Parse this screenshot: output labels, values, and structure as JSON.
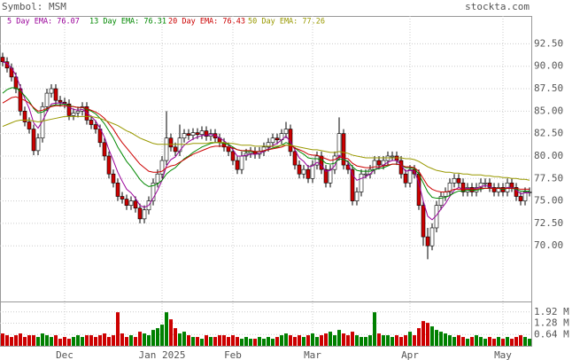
{
  "chart_data": {
    "type": "candlestick",
    "title": "Symbol: MSM",
    "source": "stockta.com",
    "categories": [
      null,
      null,
      null,
      null,
      null,
      null,
      null,
      null,
      null,
      null,
      null,
      null,
      null,
      null,
      "Dec",
      null,
      null,
      null,
      null,
      null,
      null,
      null,
      null,
      null,
      null,
      null,
      null,
      null,
      null,
      null,
      null,
      null,
      null,
      null,
      null,
      null,
      "Jan 2025",
      null,
      null,
      null,
      null,
      null,
      null,
      null,
      null,
      null,
      null,
      null,
      null,
      null,
      null,
      null,
      "Feb",
      null,
      null,
      null,
      null,
      null,
      null,
      null,
      null,
      null,
      null,
      null,
      null,
      null,
      null,
      null,
      null,
      null,
      "Mar",
      null,
      null,
      null,
      null,
      null,
      null,
      null,
      null,
      null,
      null,
      null,
      null,
      null,
      null,
      null,
      null,
      null,
      null,
      null,
      null,
      null,
      "Apr",
      null,
      null,
      null,
      null,
      null,
      null,
      null,
      null,
      null,
      null,
      null,
      null,
      null,
      null,
      null,
      null,
      null,
      null,
      null,
      null,
      "May",
      null,
      null,
      null,
      null,
      null,
      null
    ],
    "open": [
      91.0,
      90.5,
      89.8,
      88.8,
      87.5,
      85.0,
      83.8,
      83.0,
      80.6,
      82.0,
      85.5,
      87.0,
      87.5,
      86.2,
      86.0,
      85.8,
      84.5,
      84.8,
      85.0,
      85.5,
      84.0,
      83.5,
      83.0,
      81.5,
      80.0,
      78.0,
      77.0,
      75.5,
      75.2,
      74.5,
      75.0,
      74.2,
      73.0,
      74.0,
      75.0,
      77.0,
      78.0,
      79.5,
      82.0,
      81.0,
      80.5,
      82.0,
      82.5,
      82.3,
      82.6,
      82.4,
      82.8,
      82.2,
      82.5,
      82.0,
      81.5,
      81.0,
      80.5,
      79.5,
      78.5,
      80.0,
      80.3,
      80.5,
      80.2,
      80.5,
      81.0,
      81.5,
      82.0,
      81.8,
      82.5,
      83.0,
      80.5,
      79.0,
      78.0,
      78.5,
      77.5,
      79.0,
      80.0,
      78.5,
      77.0,
      78.5,
      80.0,
      82.5,
      79.0,
      78.5,
      75.0,
      76.0,
      78.0,
      78.0,
      78.5,
      79.5,
      79.0,
      79.5,
      80.0,
      80.0,
      79.5,
      78.0,
      77.0,
      78.5,
      78.0,
      74.5,
      71.0,
      70.0,
      72.0,
      74.5,
      75.5,
      76.0,
      77.0,
      77.5,
      77.0,
      76.0,
      76.5,
      76.0,
      76.5,
      77.0,
      77.0,
      76.5,
      76.0,
      76.5,
      76.0,
      77.0,
      76.5,
      75.5,
      75.0,
      76.0
    ],
    "high": [
      91.5,
      91.0,
      90.3,
      89.3,
      88.0,
      85.5,
      84.3,
      83.5,
      82.5,
      86.0,
      87.5,
      88.0,
      88.0,
      86.7,
      86.5,
      86.3,
      85.3,
      85.5,
      86.0,
      86.0,
      84.5,
      84.0,
      83.5,
      82.0,
      80.5,
      78.5,
      77.5,
      76.0,
      75.7,
      75.5,
      75.5,
      74.7,
      74.5,
      75.5,
      77.5,
      78.5,
      80.0,
      85.0,
      82.5,
      81.5,
      83.5,
      83.0,
      83.0,
      83.1,
      83.1,
      83.3,
      83.3,
      83.0,
      83.0,
      82.5,
      82.0,
      81.5,
      81.0,
      80.0,
      80.5,
      80.8,
      81.0,
      81.0,
      81.0,
      81.5,
      82.0,
      82.5,
      82.5,
      83.0,
      83.8,
      83.5,
      81.0,
      79.5,
      79.0,
      79.0,
      79.5,
      80.5,
      80.5,
      79.0,
      79.0,
      80.5,
      84.3,
      83.0,
      79.5,
      79.0,
      76.5,
      78.5,
      78.5,
      79.0,
      80.0,
      80.0,
      80.0,
      80.5,
      80.5,
      80.5,
      80.0,
      78.5,
      79.0,
      79.0,
      78.5,
      75.0,
      72.0,
      72.5,
      75.0,
      76.0,
      76.5,
      77.5,
      78.0,
      78.0,
      77.5,
      77.0,
      77.0,
      77.0,
      77.5,
      77.5,
      77.5,
      77.0,
      77.0,
      77.0,
      77.5,
      77.5,
      77.0,
      76.0,
      76.5,
      76.5
    ],
    "low": [
      90.0,
      89.3,
      88.3,
      87.0,
      84.5,
      83.3,
      82.5,
      80.1,
      80.1,
      81.5,
      85.0,
      86.5,
      85.7,
      85.5,
      85.3,
      84.0,
      84.0,
      84.3,
      84.5,
      83.5,
      83.0,
      82.5,
      81.0,
      79.5,
      77.5,
      76.5,
      75.0,
      74.7,
      74.0,
      74.0,
      73.7,
      72.5,
      72.5,
      73.5,
      74.5,
      76.5,
      77.5,
      79.0,
      80.5,
      80.0,
      80.0,
      81.5,
      81.8,
      81.8,
      81.9,
      81.9,
      81.7,
      81.7,
      81.5,
      81.0,
      80.5,
      80.0,
      79.0,
      78.0,
      78.0,
      79.5,
      79.8,
      79.7,
      79.7,
      80.0,
      80.5,
      81.0,
      81.3,
      81.3,
      82.0,
      80.0,
      78.5,
      77.5,
      77.5,
      77.0,
      77.0,
      78.5,
      78.0,
      76.5,
      76.5,
      78.0,
      79.5,
      78.5,
      78.0,
      74.5,
      74.5,
      75.5,
      77.5,
      77.5,
      78.0,
      78.5,
      78.5,
      79.0,
      79.5,
      79.0,
      77.5,
      76.5,
      76.5,
      77.5,
      74.0,
      70.0,
      68.5,
      69.5,
      71.5,
      74.0,
      75.0,
      75.5,
      76.5,
      76.5,
      75.5,
      75.5,
      75.5,
      75.5,
      76.0,
      76.5,
      76.0,
      75.5,
      75.5,
      75.5,
      75.5,
      76.0,
      75.0,
      74.5,
      74.5,
      75.5
    ],
    "close": [
      90.5,
      89.8,
      88.8,
      87.5,
      85.0,
      83.8,
      83.0,
      80.6,
      82.0,
      85.5,
      87.0,
      87.5,
      86.2,
      86.0,
      85.8,
      84.5,
      84.8,
      85.0,
      85.5,
      84.0,
      83.5,
      83.0,
      81.5,
      80.0,
      78.0,
      77.0,
      75.5,
      75.2,
      74.5,
      75.0,
      74.2,
      73.0,
      74.0,
      75.0,
      77.0,
      78.0,
      79.5,
      82.0,
      81.0,
      80.5,
      82.0,
      82.5,
      82.3,
      82.6,
      82.4,
      82.8,
      82.2,
      82.5,
      82.0,
      81.5,
      81.0,
      80.5,
      79.5,
      78.5,
      80.0,
      80.3,
      80.5,
      80.2,
      80.5,
      81.0,
      81.5,
      82.0,
      81.8,
      82.5,
      83.0,
      80.5,
      79.0,
      78.0,
      78.5,
      77.5,
      79.0,
      80.0,
      78.5,
      77.0,
      78.5,
      80.0,
      82.5,
      79.0,
      78.5,
      75.0,
      76.0,
      78.0,
      78.0,
      78.5,
      79.5,
      79.0,
      79.5,
      80.0,
      80.0,
      79.5,
      78.0,
      77.0,
      78.5,
      78.0,
      74.5,
      71.0,
      70.0,
      72.0,
      74.5,
      75.5,
      76.0,
      77.0,
      77.5,
      77.0,
      76.0,
      76.5,
      76.0,
      76.5,
      77.0,
      77.0,
      76.5,
      76.0,
      76.5,
      76.0,
      77.0,
      76.5,
      75.5,
      75.0,
      76.0,
      76.0
    ],
    "up_color": "#ffffff",
    "down_color": "#cc0000",
    "volume_up_color": "#008000",
    "volume_down_color": "#cc0000",
    "series": [
      {
        "name": "5 Day EMA: 76.07",
        "color": "#990099",
        "values": [
          90.5,
          90.3,
          89.8,
          89.0,
          87.7,
          86.4,
          85.3,
          83.7,
          83.1,
          83.9,
          84.9,
          85.8,
          85.9,
          85.9,
          85.9,
          85.4,
          85.2,
          85.1,
          85.2,
          84.8,
          84.4,
          83.9,
          83.1,
          82.1,
          80.7,
          79.5,
          78.2,
          77.2,
          76.3,
          75.9,
          75.3,
          74.5,
          74.3,
          74.5,
          75.3,
          76.2,
          77.3,
          78.9,
          79.6,
          79.9,
          80.6,
          81.2,
          81.6,
          81.9,
          82.1,
          82.3,
          82.3,
          82.4,
          82.3,
          82.0,
          81.7,
          81.3,
          80.7,
          80.0,
          80.0,
          80.1,
          80.2,
          80.2,
          80.3,
          80.5,
          80.8,
          81.2,
          81.4,
          81.8,
          82.2,
          81.6,
          80.7,
          79.8,
          79.4,
          78.8,
          78.9,
          79.3,
          79.0,
          78.3,
          78.4,
          78.9,
          80.1,
          79.7,
          79.3,
          77.9,
          77.3,
          77.5,
          77.7,
          78.0,
          78.5,
          78.7,
          79.0,
          79.3,
          79.5,
          79.5,
          79.0,
          78.3,
          78.4,
          78.3,
          77.0,
          75.0,
          73.3,
          72.9,
          73.4,
          74.1,
          74.7,
          75.5,
          76.2,
          76.5,
          76.3,
          76.4,
          76.3,
          76.4,
          76.6,
          76.7,
          76.6,
          76.4,
          76.4,
          76.3,
          76.5,
          76.5,
          76.2,
          75.8,
          75.9,
          75.9
        ]
      },
      {
        "name": "13 Day EMA: 76.31",
        "color": "#008800",
        "values": [
          87.0,
          87.4,
          87.6,
          87.6,
          87.2,
          86.7,
          86.1,
          85.3,
          84.8,
          84.9,
          85.2,
          85.6,
          85.7,
          85.7,
          85.8,
          85.6,
          85.5,
          85.4,
          85.4,
          85.2,
          85.0,
          84.7,
          84.2,
          83.6,
          82.8,
          82.0,
          81.0,
          80.2,
          79.4,
          78.8,
          78.1,
          77.4,
          76.9,
          76.6,
          76.7,
          76.9,
          77.3,
          78.0,
          78.4,
          78.7,
          79.2,
          79.7,
          80.0,
          80.4,
          80.7,
          81.0,
          81.2,
          81.4,
          81.5,
          81.5,
          81.4,
          81.3,
          81.0,
          80.7,
          80.6,
          80.5,
          80.5,
          80.5,
          80.5,
          80.6,
          80.7,
          80.9,
          81.0,
          81.2,
          81.5,
          81.3,
          80.9,
          80.5,
          80.2,
          79.8,
          79.7,
          79.7,
          79.6,
          79.2,
          79.1,
          79.2,
          79.7,
          79.6,
          79.4,
          78.8,
          78.4,
          78.3,
          78.3,
          78.3,
          78.5,
          78.6,
          78.7,
          78.9,
          79.1,
          79.1,
          79.0,
          78.7,
          78.7,
          78.6,
          78.0,
          77.0,
          76.0,
          75.4,
          75.3,
          75.3,
          75.4,
          75.6,
          75.9,
          76.1,
          76.1,
          76.2,
          76.2,
          76.2,
          76.3,
          76.4,
          76.4,
          76.4,
          76.4,
          76.3,
          76.4,
          76.4,
          76.3,
          76.1,
          76.1,
          76.1
        ]
      },
      {
        "name": "20 Day EMA: 76.43",
        "color": "#cc0000",
        "values": [
          85.9,
          86.2,
          86.5,
          86.6,
          86.4,
          86.2,
          85.9,
          85.4,
          85.0,
          85.1,
          85.3,
          85.5,
          85.6,
          85.6,
          85.6,
          85.5,
          85.5,
          85.4,
          85.4,
          85.3,
          85.1,
          84.9,
          84.6,
          84.2,
          83.6,
          83.0,
          82.2,
          81.5,
          80.9,
          80.3,
          79.7,
          79.1,
          78.7,
          78.3,
          78.2,
          78.2,
          78.3,
          78.7,
          78.9,
          79.0,
          79.3,
          79.6,
          79.9,
          80.2,
          80.4,
          80.6,
          80.8,
          81.0,
          81.1,
          81.1,
          81.1,
          81.0,
          80.9,
          80.7,
          80.6,
          80.6,
          80.6,
          80.5,
          80.5,
          80.6,
          80.7,
          80.8,
          80.9,
          81.0,
          81.2,
          81.2,
          80.9,
          80.7,
          80.5,
          80.2,
          80.1,
          80.1,
          79.9,
          79.7,
          79.5,
          79.6,
          79.9,
          79.8,
          79.7,
          79.2,
          78.9,
          78.8,
          78.7,
          78.7,
          78.8,
          78.8,
          78.9,
          79.0,
          79.1,
          79.1,
          79.0,
          78.8,
          78.8,
          78.7,
          78.3,
          77.5,
          76.7,
          76.3,
          76.1,
          76.0,
          76.0,
          76.1,
          76.3,
          76.3,
          76.3,
          76.3,
          76.3,
          76.3,
          76.4,
          76.4,
          76.4,
          76.4,
          76.4,
          76.4,
          76.4,
          76.4,
          76.4,
          76.3,
          76.3,
          76.3
        ]
      },
      {
        "name": "50 Day EMA: 77.26",
        "color": "#999900",
        "values": [
          83.3,
          83.5,
          83.7,
          83.9,
          84.0,
          84.0,
          84.0,
          83.9,
          83.8,
          83.9,
          84.0,
          84.1,
          84.2,
          84.3,
          84.4,
          84.4,
          84.4,
          84.4,
          84.4,
          84.4,
          84.4,
          84.3,
          84.2,
          84.0,
          83.8,
          83.6,
          83.4,
          83.1,
          82.8,
          82.6,
          82.3,
          82.0,
          81.8,
          81.6,
          81.4,
          81.3,
          81.3,
          81.3,
          81.3,
          81.3,
          81.3,
          81.3,
          81.3,
          81.4,
          81.4,
          81.4,
          81.4,
          81.5,
          81.5,
          81.5,
          81.5,
          81.4,
          81.4,
          81.3,
          81.2,
          81.2,
          81.2,
          81.1,
          81.1,
          81.1,
          81.1,
          81.1,
          81.1,
          81.2,
          81.2,
          81.2,
          81.1,
          81.0,
          80.9,
          80.8,
          80.7,
          80.7,
          80.6,
          80.5,
          80.4,
          80.4,
          80.5,
          80.4,
          80.3,
          80.1,
          80.0,
          79.9,
          79.8,
          79.8,
          79.8,
          79.8,
          79.8,
          79.8,
          79.8,
          79.8,
          79.8,
          79.7,
          79.7,
          79.6,
          79.4,
          79.1,
          78.8,
          78.6,
          78.4,
          78.3,
          78.2,
          78.2,
          78.1,
          78.1,
          78.0,
          78.0,
          77.9,
          77.9,
          77.9,
          77.8,
          77.8,
          77.7,
          77.7,
          77.6,
          77.6,
          77.5,
          77.5,
          77.4,
          77.4,
          77.3
        ]
      }
    ],
    "ylim": [
      63.8,
      95.6
    ],
    "yticks": [
      {
        "value": 70,
        "label": "70.00"
      },
      {
        "value": 72.5,
        "label": "72.50"
      },
      {
        "value": 75,
        "label": "75.00"
      },
      {
        "value": 77.5,
        "label": "77.50"
      },
      {
        "value": 80,
        "label": "80.00"
      },
      {
        "value": 82.5,
        "label": "82.50"
      },
      {
        "value": 85,
        "label": "85.00"
      },
      {
        "value": 87.5,
        "label": "87.50"
      },
      {
        "value": 90,
        "label": "90.00"
      },
      {
        "value": 92.5,
        "label": "92.50"
      }
    ],
    "grid": true,
    "volume": {
      "values": [
        0.7,
        0.6,
        0.5,
        0.6,
        0.7,
        0.5,
        0.6,
        0.6,
        0.5,
        0.7,
        0.6,
        0.5,
        0.6,
        0.4,
        0.5,
        0.4,
        0.5,
        0.6,
        0.5,
        0.6,
        0.6,
        0.5,
        0.6,
        0.7,
        0.5,
        0.6,
        1.9,
        0.7,
        0.5,
        0.6,
        0.5,
        0.8,
        0.7,
        0.6,
        0.9,
        1.0,
        1.2,
        1.9,
        1.5,
        1.0,
        0.7,
        0.8,
        0.6,
        0.5,
        0.5,
        0.4,
        0.6,
        0.5,
        0.5,
        0.6,
        0.6,
        0.5,
        0.6,
        0.5,
        0.4,
        0.5,
        0.4,
        0.4,
        0.5,
        0.4,
        0.5,
        0.4,
        0.5,
        0.6,
        0.7,
        0.6,
        0.5,
        0.6,
        0.5,
        0.6,
        0.7,
        0.5,
        0.6,
        0.7,
        0.8,
        0.6,
        0.9,
        0.7,
        0.6,
        0.8,
        0.6,
        0.5,
        0.5,
        0.6,
        1.9,
        0.7,
        0.6,
        0.6,
        0.5,
        0.6,
        0.5,
        0.6,
        0.8,
        0.6,
        1.0,
        1.4,
        1.3,
        1.1,
        0.9,
        0.8,
        0.7,
        0.6,
        0.5,
        0.6,
        0.5,
        0.4,
        0.5,
        0.6,
        0.5,
        0.4,
        0.5,
        0.4,
        0.5,
        0.4,
        0.5,
        0.4,
        0.5,
        0.6,
        0.5,
        0.4
      ],
      "ylim": [
        0,
        2.46
      ],
      "yticks": [
        {
          "value": 0.64,
          "label": "0.64 M"
        },
        {
          "value": 1.28,
          "label": "1.28 M"
        },
        {
          "value": 1.92,
          "label": "1.92 M"
        }
      ]
    }
  }
}
